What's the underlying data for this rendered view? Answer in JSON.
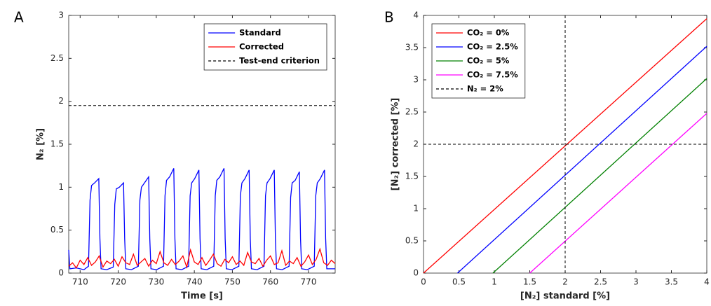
{
  "chart_data": [
    {
      "type": "line",
      "panel_label": "A",
      "xlabel": "Time [s]",
      "ylabel": "N₂ [%]",
      "xlim": [
        707,
        777
      ],
      "xticks": [
        710,
        720,
        730,
        740,
        750,
        760,
        770
      ],
      "ylim": [
        0,
        3
      ],
      "yticks": [
        0,
        0.5,
        1,
        1.5,
        2,
        2.5,
        3
      ],
      "legend_loc": "upper right",
      "series": [
        {
          "name": "Standard",
          "color": "#0000ff",
          "dash": false,
          "x": [
            707,
            707.3,
            709,
            711,
            712.2,
            712.6,
            713.0,
            713.8,
            714.9,
            715.2,
            715.5,
            717,
            718.7,
            719.1,
            719.5,
            720.3,
            721.4,
            721.7,
            722.0,
            723.5,
            725.3,
            725.7,
            726.1,
            726.9,
            728.0,
            728.3,
            728.6,
            730.1,
            731.9,
            732.3,
            732.7,
            733.5,
            734.6,
            734.9,
            735.2,
            736.7,
            738.5,
            738.9,
            739.3,
            740.1,
            741.2,
            741.5,
            741.8,
            743.3,
            745.1,
            745.5,
            745.9,
            746.7,
            747.8,
            748.1,
            748.4,
            749.9,
            751.7,
            752.1,
            752.5,
            753.3,
            754.4,
            754.7,
            755.0,
            756.5,
            758.3,
            758.7,
            759.1,
            759.9,
            761.0,
            761.3,
            761.6,
            763.1,
            764.9,
            765.3,
            765.7,
            766.5,
            767.6,
            767.9,
            768.2,
            769.7,
            771.5,
            771.9,
            772.3,
            773.1,
            774.2,
            774.5,
            774.8,
            777
          ],
          "values": [
            0.27,
            0.05,
            0.06,
            0.04,
            0.08,
            0.85,
            1.02,
            1.05,
            1.1,
            0.4,
            0.05,
            0.04,
            0.07,
            0.8,
            0.98,
            1.0,
            1.05,
            0.4,
            0.05,
            0.04,
            0.08,
            0.85,
            1.0,
            1.05,
            1.12,
            0.4,
            0.05,
            0.04,
            0.08,
            0.9,
            1.08,
            1.12,
            1.22,
            0.4,
            0.05,
            0.04,
            0.08,
            0.9,
            1.05,
            1.1,
            1.2,
            0.4,
            0.05,
            0.04,
            0.08,
            0.9,
            1.08,
            1.12,
            1.22,
            0.4,
            0.05,
            0.04,
            0.08,
            0.9,
            1.05,
            1.1,
            1.2,
            0.4,
            0.05,
            0.04,
            0.08,
            0.9,
            1.05,
            1.1,
            1.2,
            0.4,
            0.05,
            0.04,
            0.08,
            0.88,
            1.05,
            1.08,
            1.18,
            0.4,
            0.05,
            0.04,
            0.08,
            0.9,
            1.05,
            1.1,
            1.2,
            0.4,
            0.05,
            0.05
          ]
        },
        {
          "name": "Corrected",
          "color": "#ff0000",
          "dash": false,
          "x": [
            707,
            708,
            709,
            710,
            711,
            712,
            713,
            714,
            715,
            716,
            717,
            718,
            719,
            720,
            721,
            722,
            723,
            724,
            725,
            726,
            727,
            728,
            729,
            730,
            731,
            732,
            733,
            734,
            735,
            736,
            737,
            738,
            739,
            740,
            741,
            742,
            743,
            744,
            745,
            746,
            747,
            748,
            749,
            750,
            751,
            752,
            753,
            754,
            755,
            756,
            757,
            758,
            759,
            760,
            761,
            762,
            763,
            764,
            765,
            766,
            767,
            768,
            769,
            770,
            771,
            772,
            773,
            774,
            775,
            776,
            777
          ],
          "values": [
            0.08,
            0.12,
            0.06,
            0.15,
            0.1,
            0.18,
            0.09,
            0.13,
            0.2,
            0.07,
            0.14,
            0.11,
            0.16,
            0.08,
            0.19,
            0.12,
            0.1,
            0.22,
            0.09,
            0.13,
            0.17,
            0.08,
            0.15,
            0.11,
            0.25,
            0.12,
            0.09,
            0.16,
            0.1,
            0.14,
            0.2,
            0.07,
            0.27,
            0.13,
            0.1,
            0.18,
            0.09,
            0.15,
            0.22,
            0.11,
            0.08,
            0.16,
            0.12,
            0.19,
            0.1,
            0.14,
            0.09,
            0.24,
            0.13,
            0.11,
            0.17,
            0.08,
            0.15,
            0.2,
            0.1,
            0.12,
            0.26,
            0.09,
            0.14,
            0.11,
            0.18,
            0.08,
            0.13,
            0.21,
            0.1,
            0.16,
            0.28,
            0.12,
            0.09,
            0.15,
            0.11
          ]
        },
        {
          "name": "Test-end criterion",
          "color": "#000000",
          "dash": true,
          "x": [
            707,
            777
          ],
          "values": [
            1.95,
            1.95
          ]
        }
      ]
    },
    {
      "type": "line",
      "panel_label": "B",
      "xlabel": "[N₂] standard [%]",
      "ylabel": "[N₂] corrected [%]",
      "xlim": [
        0,
        4
      ],
      "xticks": [
        0,
        0.5,
        1,
        1.5,
        2,
        2.5,
        3,
        3.5,
        4
      ],
      "ylim": [
        0,
        4
      ],
      "yticks": [
        0,
        0.5,
        1,
        1.5,
        2,
        2.5,
        3,
        3.5,
        4
      ],
      "legend_loc": "upper left",
      "series": [
        {
          "name": "CO₂ = 0%",
          "color": "#ff0000",
          "dash": false,
          "x": [
            0,
            4
          ],
          "values": [
            0,
            3.95
          ]
        },
        {
          "name": "CO₂ = 2.5%",
          "color": "#0000ff",
          "dash": false,
          "x": [
            0.48,
            4
          ],
          "values": [
            0,
            3.52
          ]
        },
        {
          "name": "CO₂ = 5%",
          "color": "#008000",
          "dash": false,
          "x": [
            0.98,
            4
          ],
          "values": [
            0,
            3.02
          ]
        },
        {
          "name": "CO₂ = 7.5%",
          "color": "#ff00ff",
          "dash": false,
          "x": [
            1.5,
            4
          ],
          "values": [
            0,
            2.48
          ]
        },
        {
          "name": "N₂ = 2%",
          "color": "#000000",
          "dash": true,
          "x": [
            0,
            4,
            null,
            2,
            2
          ],
          "values": [
            2,
            2,
            null,
            0,
            4
          ]
        }
      ]
    }
  ]
}
